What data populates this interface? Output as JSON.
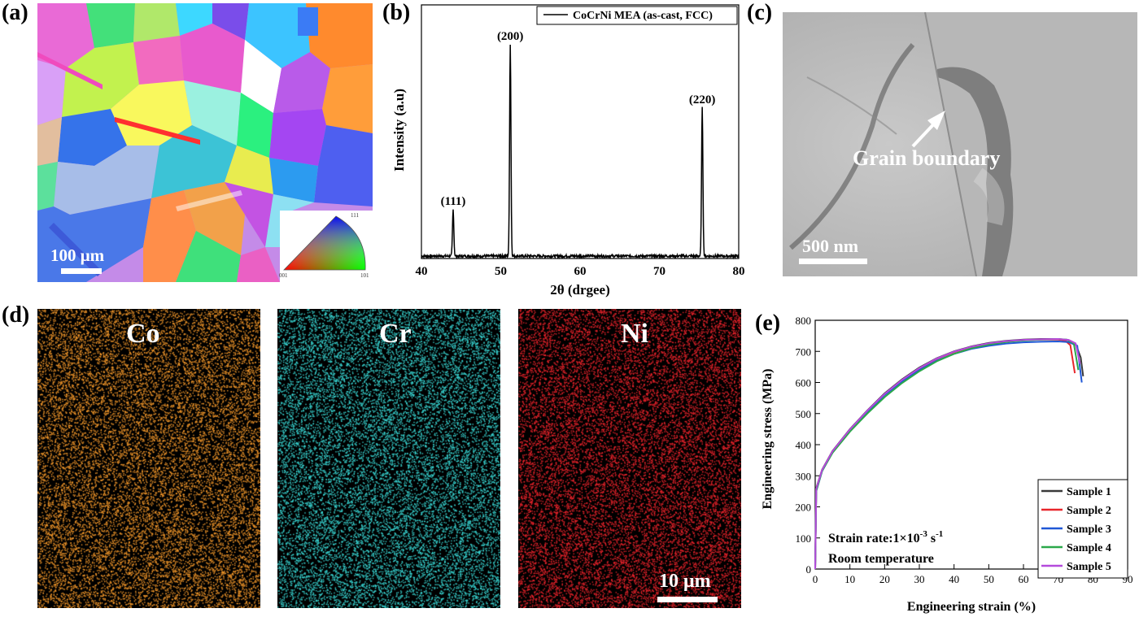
{
  "panels": {
    "a": {
      "label": "(a)",
      "scale_bar": "100 μm",
      "ipf_corner_top": "111",
      "ipf_corner_left": "001",
      "ipf_corner_right": "101"
    },
    "b": {
      "label": "(b)"
    },
    "c": {
      "label": "(c)",
      "annotation": "Grain boundary",
      "scale_bar": "500 nm"
    },
    "d": {
      "label": "(d)",
      "maps": [
        {
          "element": "Co",
          "color": "#f0962a"
        },
        {
          "element": "Cr",
          "color": "#38d3d0"
        },
        {
          "element": "Ni",
          "color": "#e8232b"
        }
      ],
      "scale_bar": "10 μm"
    },
    "e": {
      "label": "(e)"
    }
  },
  "chart_data": [
    {
      "type": "line",
      "panel": "b",
      "xlabel": "2θ (drgee)",
      "ylabel": "Intensity (a.u)",
      "xlim": [
        40,
        80
      ],
      "xticks": [
        40,
        50,
        60,
        70,
        80
      ],
      "legend": "top-right",
      "series": [
        {
          "name": "CoCrNi MEA (as-cast, FCC)",
          "color": "#000000"
        }
      ],
      "peaks": [
        {
          "label": "(111)",
          "x": 44.0,
          "y": 0.22
        },
        {
          "label": "(200)",
          "x": 51.2,
          "y": 1.0
        },
        {
          "label": "(220)",
          "x": 75.4,
          "y": 0.7
        }
      ]
    },
    {
      "type": "line",
      "panel": "e",
      "xlabel": "Engineering strain (%)",
      "ylabel": "Engineering stress (MPa)",
      "xlim": [
        0,
        90
      ],
      "ylim": [
        0,
        800
      ],
      "xticks": [
        0,
        10,
        20,
        30,
        40,
        50,
        60,
        70,
        80,
        90
      ],
      "yticks": [
        0,
        100,
        200,
        300,
        400,
        500,
        600,
        700,
        800
      ],
      "legend": "bottom-right",
      "annotations": [
        "Strain rate:1×10",
        "Room temperature"
      ],
      "strain_rate_exponent": "-3",
      "strain_rate_unit": "s",
      "strain_rate_unit_exponent": "-1",
      "series": [
        {
          "name": "Sample 1",
          "color": "#3a3a3a",
          "x": [
            0,
            0.3,
            2,
            5,
            10,
            15,
            20,
            25,
            30,
            35,
            40,
            45,
            50,
            55,
            60,
            65,
            70,
            73,
            75,
            76.5,
            77.2
          ],
          "y": [
            0,
            260,
            320,
            380,
            450,
            510,
            565,
            610,
            648,
            678,
            700,
            716,
            727,
            734,
            738,
            740,
            740,
            736,
            725,
            680,
            620
          ]
        },
        {
          "name": "Sample 2",
          "color": "#e8262b",
          "x": [
            0,
            0.3,
            2,
            5,
            10,
            15,
            20,
            25,
            30,
            35,
            40,
            45,
            50,
            55,
            60,
            65,
            70,
            72,
            73.5,
            74.8
          ],
          "y": [
            0,
            255,
            318,
            378,
            448,
            508,
            562,
            607,
            645,
            676,
            698,
            714,
            725,
            732,
            736,
            738,
            738,
            735,
            720,
            630
          ]
        },
        {
          "name": "Sample 3",
          "color": "#1f57d6",
          "x": [
            0,
            0.3,
            2,
            5,
            10,
            15,
            20,
            25,
            30,
            35,
            40,
            45,
            50,
            55,
            60,
            65,
            70,
            73,
            75.5,
            76.8
          ],
          "y": [
            0,
            250,
            315,
            375,
            445,
            505,
            560,
            603,
            640,
            670,
            692,
            708,
            718,
            725,
            729,
            731,
            732,
            730,
            718,
            600
          ]
        },
        {
          "name": "Sample 4",
          "color": "#2ba84a",
          "x": [
            0,
            0.3,
            2,
            5,
            10,
            15,
            20,
            25,
            30,
            35,
            40,
            45,
            50,
            55,
            60,
            65,
            70,
            72.5,
            74.5,
            75.8
          ],
          "y": [
            0,
            252,
            316,
            374,
            442,
            500,
            553,
            598,
            636,
            668,
            692,
            710,
            722,
            730,
            735,
            738,
            740,
            738,
            725,
            640
          ]
        },
        {
          "name": "Sample 5",
          "color": "#b44bdc",
          "x": [
            0,
            0.3,
            2,
            5,
            10,
            15,
            20,
            25,
            30,
            35,
            40,
            45,
            50,
            55,
            60,
            65,
            70,
            73,
            75,
            76.3
          ],
          "y": [
            0,
            258,
            319,
            379,
            449,
            509,
            563,
            608,
            646,
            677,
            699,
            715,
            726,
            733,
            737,
            739,
            740,
            737,
            726,
            660
          ]
        }
      ]
    }
  ]
}
